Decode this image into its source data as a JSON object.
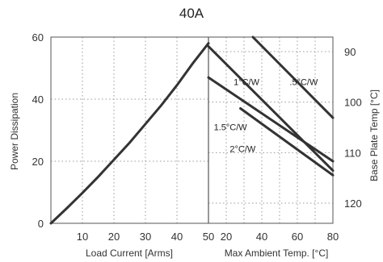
{
  "chart_data": {
    "type": "line",
    "title": "40A",
    "left_panel": {
      "xlabel": "Load Current  [Arms]",
      "ylabel": "Power Dissipation",
      "xlim": [
        0,
        50
      ],
      "ylim": [
        0,
        60
      ],
      "x_ticks": [
        "10",
        "20",
        "30",
        "40",
        "50"
      ],
      "y_ticks": [
        "0",
        "20",
        "40",
        "60"
      ],
      "grid": "dotted",
      "series": [
        {
          "x": [
            0,
            5,
            10,
            15,
            20,
            25,
            30,
            35,
            40,
            45,
            50
          ],
          "y": [
            0,
            4.8,
            9.8,
            15,
            20.5,
            26,
            32,
            38,
            44.5,
            51.5,
            58
          ]
        }
      ]
    },
    "right_panel": {
      "xlabel": "Max Ambient Temp. [°C]",
      "ylabel": "Base Plate Temp [°C]",
      "xlim": [
        10,
        80
      ],
      "x_ticks": [
        "20",
        "40",
        "60",
        "80"
      ],
      "x_ticks_minor": [
        "30",
        "50",
        "70"
      ],
      "y_ticks": [
        "90",
        "100",
        "110",
        "120"
      ],
      "y_tick_values": [
        90,
        100,
        110,
        120
      ],
      "grid": "dotted",
      "series": [
        {
          "name": "1°C/W",
          "x": [
            10,
            80
          ],
          "y": [
            57,
            17
          ]
        },
        {
          "name": ".5°C/W",
          "x": [
            35,
            80
          ],
          "y": [
            60,
            34
          ]
        },
        {
          "name": "1.5°C/W",
          "x": [
            10,
            80
          ],
          "y": [
            47,
            20
          ]
        },
        {
          "name": "2°C/W",
          "x": [
            28,
            80
          ],
          "y": [
            37,
            15.5
          ]
        }
      ]
    }
  }
}
